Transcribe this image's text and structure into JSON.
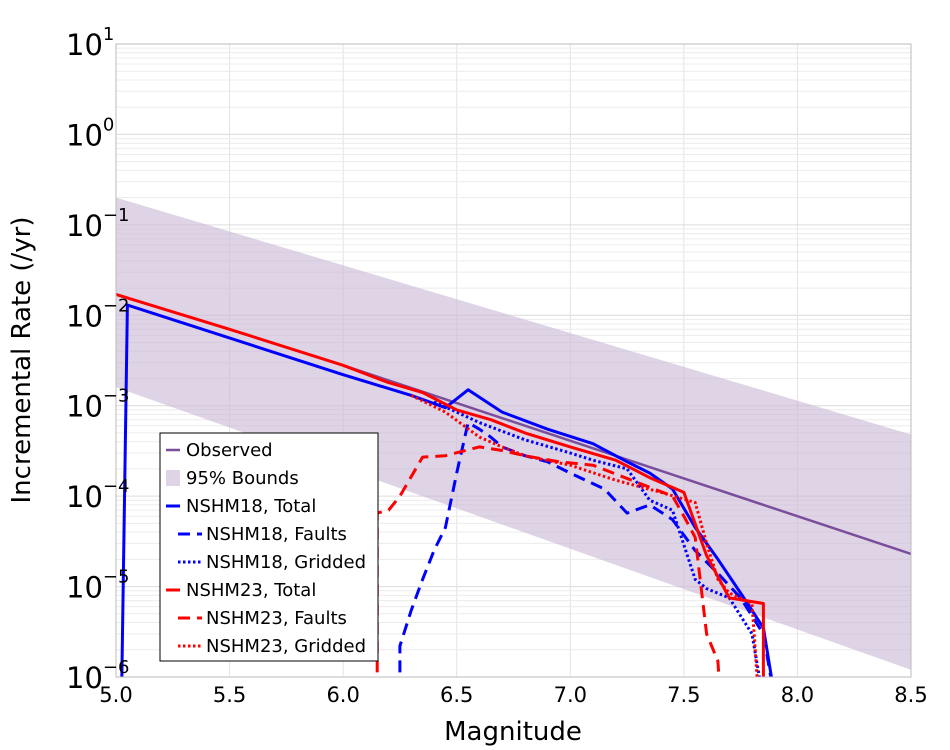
{
  "chart_data": {
    "type": "line",
    "xlabel": "Magnitude",
    "ylabel": "Incremental Rate (/yr)",
    "xlim": [
      5.0,
      8.5
    ],
    "ylim": [
      1e-06,
      10
    ],
    "y_scale": "log",
    "grid": true,
    "legend_placement": "lower-left",
    "x_ticks": [
      "5.0",
      "5.5",
      "6.0",
      "6.5",
      "7.0",
      "7.5",
      "8.0",
      "8.5"
    ],
    "y_ticks": [
      {
        "base": "10",
        "exp": "-6",
        "value": 1e-06
      },
      {
        "base": "10",
        "exp": "-5",
        "value": 1e-05
      },
      {
        "base": "10",
        "exp": "-4",
        "value": 0.0001
      },
      {
        "base": "10",
        "exp": "-3",
        "value": 0.001
      },
      {
        "base": "10",
        "exp": "-2",
        "value": 0.01
      },
      {
        "base": "10",
        "exp": "-1",
        "value": 0.1
      },
      {
        "base": "10",
        "exp": "0",
        "value": 1
      },
      {
        "base": "10",
        "exp": "1",
        "value": 10
      }
    ],
    "band": {
      "name": "95% Bounds",
      "color": "#c9b8d6",
      "upper": [
        [
          5.0,
          0.2
        ],
        [
          8.5,
          0.00048
        ]
      ],
      "lower": [
        [
          5.0,
          0.0016
        ],
        [
          8.5,
          1.2e-06
        ]
      ]
    },
    "series": [
      {
        "name": "Observed",
        "color": "#7b4e9c",
        "dash": "solid",
        "width": 2.5,
        "points": [
          [
            6.0,
            0.0028
          ],
          [
            8.5,
            2.3e-05
          ]
        ]
      },
      {
        "name": "NSHM18, Total",
        "color": "#0000ff",
        "dash": "solid",
        "width": 3,
        "points": [
          [
            5.02,
            1e-07
          ],
          [
            5.05,
            0.013
          ],
          [
            6.0,
            0.0022
          ],
          [
            6.3,
            0.0013
          ],
          [
            6.45,
            0.00095
          ],
          [
            6.55,
            0.0015
          ],
          [
            6.7,
            0.00085
          ],
          [
            6.9,
            0.00055
          ],
          [
            7.1,
            0.00038
          ],
          [
            7.25,
            0.00024
          ],
          [
            7.35,
            0.00018
          ],
          [
            7.45,
            0.00012
          ],
          [
            7.55,
            4.5e-05
          ],
          [
            7.65,
            2e-05
          ],
          [
            7.75,
            8.5e-06
          ],
          [
            7.85,
            3.5e-06
          ],
          [
            7.95,
            1e-07
          ]
        ]
      },
      {
        "name": "NSHM18, Faults",
        "color": "#0000ff",
        "dash": "dashed",
        "width": 3,
        "points": [
          [
            6.25,
            1e-07
          ],
          [
            6.25,
            2.2e-06
          ],
          [
            6.3,
            5.5e-06
          ],
          [
            6.35,
            1.2e-05
          ],
          [
            6.4,
            2.5e-05
          ],
          [
            6.45,
            4.5e-05
          ],
          [
            6.5,
            0.00018
          ],
          [
            6.55,
            0.00065
          ],
          [
            6.6,
            0.00055
          ],
          [
            6.65,
            0.00045
          ],
          [
            6.7,
            0.00035
          ],
          [
            6.8,
            0.00028
          ],
          [
            6.9,
            0.00024
          ],
          [
            7.0,
            0.00018
          ],
          [
            7.15,
            0.00012
          ],
          [
            7.25,
            6.5e-05
          ],
          [
            7.35,
            8e-05
          ],
          [
            7.45,
            5.5e-05
          ],
          [
            7.55,
            2.5e-05
          ],
          [
            7.65,
            1.4e-05
          ],
          [
            7.75,
            7.5e-06
          ],
          [
            7.85,
            3e-06
          ],
          [
            7.95,
            1e-07
          ]
        ]
      },
      {
        "name": "NSHM18, Gridded",
        "color": "#0000ff",
        "dash": "dotted",
        "width": 3,
        "points": [
          [
            6.4,
            0.0011
          ],
          [
            6.5,
            0.00085
          ],
          [
            6.6,
            0.00065
          ],
          [
            6.8,
            0.00042
          ],
          [
            7.0,
            0.0003
          ],
          [
            7.1,
            0.00025
          ],
          [
            7.25,
            0.0002
          ],
          [
            7.35,
            9e-05
          ],
          [
            7.45,
            7e-05
          ],
          [
            7.55,
            1.2e-05
          ],
          [
            7.6,
            9.5e-06
          ],
          [
            7.7,
            7.5e-06
          ],
          [
            7.8,
            3e-06
          ],
          [
            7.9,
            1e-07
          ]
        ]
      },
      {
        "name": "NSHM23, Total",
        "color": "#ff0000",
        "dash": "solid",
        "width": 3,
        "points": [
          [
            5.0,
            0.017
          ],
          [
            5.5,
            0.007
          ],
          [
            6.0,
            0.0028
          ],
          [
            6.2,
            0.0018
          ],
          [
            6.35,
            0.0014
          ],
          [
            6.5,
            0.0009
          ],
          [
            6.65,
            0.0007
          ],
          [
            6.8,
            0.0005
          ],
          [
            7.0,
            0.00035
          ],
          [
            7.2,
            0.00025
          ],
          [
            7.35,
            0.00016
          ],
          [
            7.5,
            0.00011
          ],
          [
            7.6,
            2.2e-05
          ],
          [
            7.7,
            7.5e-06
          ],
          [
            7.85,
            6.5e-06
          ],
          [
            7.85,
            1e-07
          ]
        ]
      },
      {
        "name": "NSHM23, Faults",
        "color": "#ff0000",
        "dash": "dashed",
        "width": 3,
        "points": [
          [
            6.15,
            1e-07
          ],
          [
            6.15,
            6.5e-05
          ],
          [
            6.2,
            7e-05
          ],
          [
            6.25,
            0.0001
          ],
          [
            6.35,
            0.00027
          ],
          [
            6.45,
            0.00028
          ],
          [
            6.6,
            0.00035
          ],
          [
            6.7,
            0.00032
          ],
          [
            6.8,
            0.00028
          ],
          [
            6.95,
            0.00024
          ],
          [
            7.1,
            0.00022
          ],
          [
            7.3,
            0.00014
          ],
          [
            7.45,
            0.0001
          ],
          [
            7.5,
            6e-05
          ],
          [
            7.55,
            3.5e-05
          ],
          [
            7.6,
            3e-06
          ],
          [
            7.65,
            1.5e-06
          ],
          [
            7.68,
            1e-07
          ]
        ]
      },
      {
        "name": "NSHM23, Gridded",
        "color": "#ff0000",
        "dash": "dotted",
        "width": 3,
        "points": [
          [
            6.3,
            0.0013
          ],
          [
            6.45,
            0.00085
          ],
          [
            6.6,
            0.00045
          ],
          [
            6.7,
            0.00035
          ],
          [
            6.8,
            0.00028
          ],
          [
            7.0,
            0.00022
          ],
          [
            7.2,
            0.00015
          ],
          [
            7.4,
            0.00011
          ],
          [
            7.55,
            8.5e-05
          ],
          [
            7.6,
            3e-05
          ],
          [
            7.65,
            1.2e-05
          ],
          [
            7.7,
            8.5e-06
          ],
          [
            7.8,
            6.5e-06
          ],
          [
            7.85,
            1e-07
          ]
        ]
      }
    ],
    "legend": [
      {
        "label": "Observed",
        "key": "observed"
      },
      {
        "label": "95% Bounds",
        "key": "band"
      },
      {
        "label": "NSHM18, Total",
        "key": "s1"
      },
      {
        "label": "NSHM18, Faults",
        "key": "s2"
      },
      {
        "label": "NSHM18, Gridded",
        "key": "s3"
      },
      {
        "label": "NSHM23, Total",
        "key": "s4"
      },
      {
        "label": "NSHM23, Faults",
        "key": "s5"
      },
      {
        "label": "NSHM23, Gridded",
        "key": "s6"
      }
    ]
  }
}
